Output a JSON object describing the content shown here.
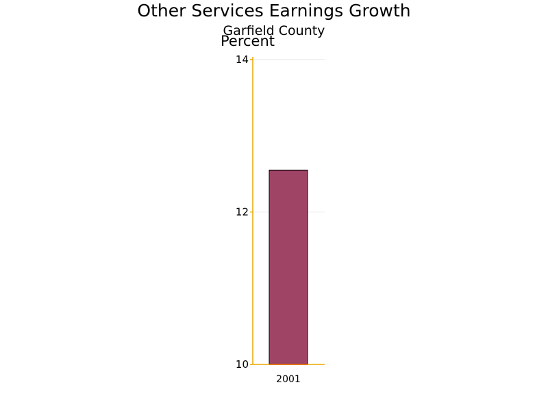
{
  "chart_data": {
    "type": "bar",
    "title": "Other Services Earnings Growth",
    "subtitle": "Garfield County",
    "ylabel": "Percent",
    "xlabel": "",
    "categories": [
      "2001"
    ],
    "values": [
      12.55
    ],
    "ylim": [
      10,
      14
    ],
    "yticks": [
      10,
      12,
      14
    ],
    "grid": true,
    "legend": "none"
  },
  "colors": {
    "bar": "#a04466",
    "bar_outline": "#000000",
    "axis": "#e8a800",
    "baseline": "#e06000",
    "grid": "#e4e4e4"
  }
}
